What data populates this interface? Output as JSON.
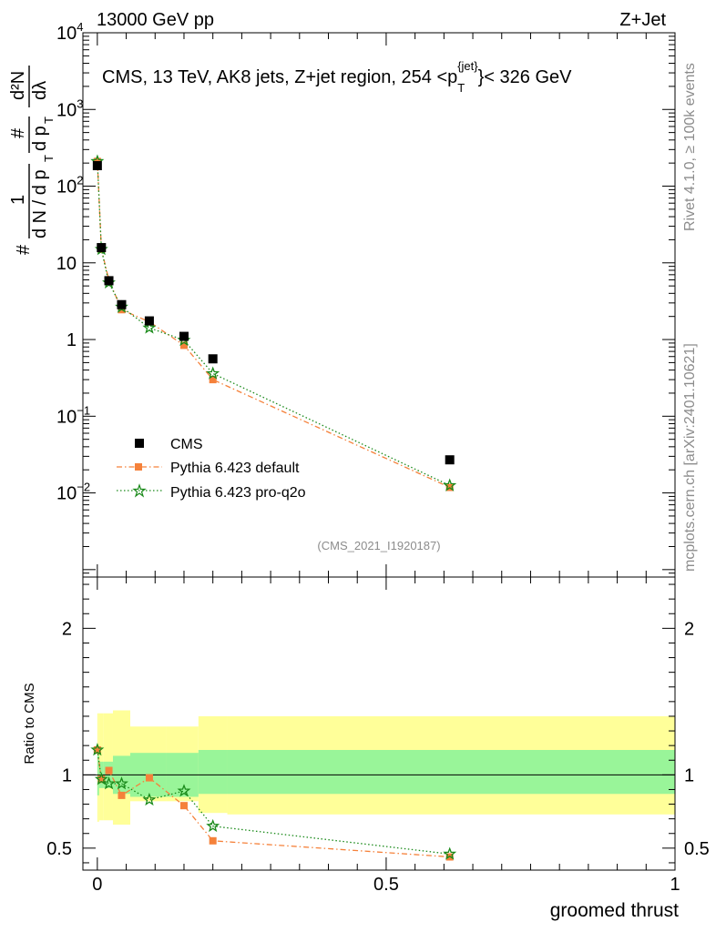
{
  "header": {
    "energy_label": "13000 GeV pp",
    "process_label": "Z+Jet",
    "side_rivet": "Rivet 4.1.0, ≥ 100k events",
    "side_mcplots": "mcplots.cern.ch [arXiv:2401.10621]",
    "analysis_id": "(CMS_2021_I1920187)"
  },
  "colors": {
    "cms": "#000000",
    "pythia_default": "#f5813a",
    "pythia_proq2o": "#1a8a1a",
    "band_inner": "#99f599",
    "band_outer": "#ffff99"
  },
  "chart_data": [
    {
      "panel": "main",
      "type": "scatter",
      "title": "CMS, 13 TeV, AK8 jets, Z+jet region, 254 <p_T^{jet}< 326 GeV",
      "title_parts": {
        "prefix": "CMS, 13 TeV, AK8 jets, Z+jet region, 254 <p",
        "sub": "T",
        "sup": "{jet}",
        "suffix": "}< 326 GeV"
      },
      "ylabel_parts": {
        "numerator": "1",
        "denominator": "d N / d p",
        "hash": "#",
        "num2": "#",
        "den2": "d p",
        "deriv": "d²N",
        "dl": "dλ",
        "sub": "T"
      },
      "yscale": "log",
      "ylim": [
        0.0008,
        10000
      ],
      "xlim": [
        -0.025,
        1.0
      ],
      "ytick_labels": [
        {
          "value": 0.01,
          "base": "10",
          "exp": "−2"
        },
        {
          "value": 0.1,
          "base": "10",
          "exp": "−1"
        },
        {
          "value": 1,
          "base": "1",
          "exp": ""
        },
        {
          "value": 10,
          "base": "10",
          "exp": ""
        },
        {
          "value": 100,
          "base": "10",
          "exp": "2"
        },
        {
          "value": 1000,
          "base": "10",
          "exp": "3"
        },
        {
          "value": 10000,
          "base": "10",
          "exp": "4"
        }
      ],
      "legend_position": "bottom-left",
      "series": [
        {
          "name": "CMS",
          "x": [
            0.0,
            0.007,
            0.02,
            0.042,
            0.09,
            0.15,
            0.2,
            0.61
          ],
          "y": [
            185,
            15.8,
            5.85,
            2.85,
            1.75,
            1.1,
            0.56,
            0.027
          ]
        },
        {
          "name": "Pythia 6.423 default",
          "x": [
            0.0,
            0.007,
            0.02,
            0.042,
            0.09,
            0.15,
            0.2,
            0.61
          ],
          "y": [
            210,
            15.0,
            6.0,
            2.45,
            1.7,
            0.84,
            0.3,
            0.0118
          ]
        },
        {
          "name": "Pythia 6.423 pro-q2o",
          "x": [
            0.0,
            0.007,
            0.02,
            0.042,
            0.09,
            0.15,
            0.2,
            0.61
          ],
          "y": [
            210,
            15.0,
            5.5,
            2.65,
            1.42,
            0.98,
            0.36,
            0.0125
          ]
        }
      ]
    },
    {
      "panel": "ratio",
      "type": "line",
      "ylabel": "Ratio to CMS",
      "ylim": [
        0.35,
        2.35
      ],
      "xlim": [
        -0.025,
        1.0
      ],
      "ytick_labels": [
        "0.5",
        "1",
        "2"
      ],
      "ytick_values": [
        0.5,
        1,
        2
      ],
      "xlabel": "groomed thrust",
      "xtick_labels": [
        "0",
        "0.5",
        "1"
      ],
      "xtick_values": [
        0,
        0.5,
        1
      ],
      "bands": {
        "edges": [
          0.0,
          0.003,
          0.011,
          0.027,
          0.057,
          0.12,
          0.175,
          0.225,
          1.0
        ],
        "inner_lo": [
          0.86,
          0.91,
          0.91,
          0.87,
          0.85,
          0.85,
          0.87,
          0.87
        ],
        "inner_hi": [
          1.16,
          1.09,
          1.09,
          1.13,
          1.15,
          1.15,
          1.17,
          1.17
        ],
        "outer_lo": [
          0.68,
          0.69,
          0.69,
          0.66,
          0.82,
          0.82,
          0.74,
          0.73
        ],
        "outer_hi": [
          1.42,
          1.42,
          1.42,
          1.44,
          1.33,
          1.33,
          1.4,
          1.4
        ]
      },
      "series": [
        {
          "name": "Pythia 6.423 default",
          "x": [
            0.0,
            0.007,
            0.02,
            0.042,
            0.09,
            0.15,
            0.2,
            0.61
          ],
          "y": [
            1.17,
            0.97,
            1.03,
            0.86,
            0.98,
            0.79,
            0.55,
            0.44
          ]
        },
        {
          "name": "Pythia 6.423 pro-q2o",
          "x": [
            0.0,
            0.007,
            0.02,
            0.042,
            0.09,
            0.15,
            0.2,
            0.61
          ],
          "y": [
            1.17,
            0.97,
            0.94,
            0.94,
            0.83,
            0.89,
            0.65,
            0.46
          ]
        }
      ]
    }
  ]
}
